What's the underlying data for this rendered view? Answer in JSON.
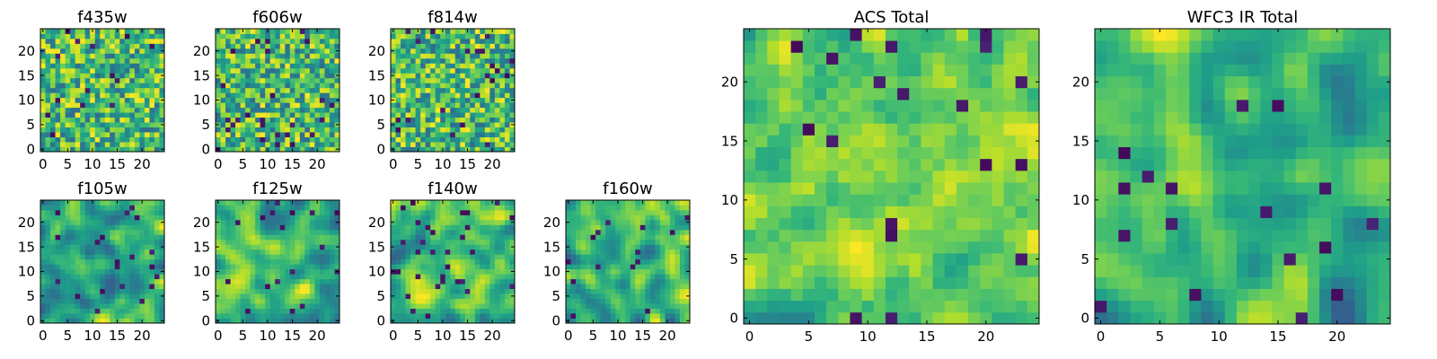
{
  "colormap": "viridis",
  "chart_data": [
    {
      "type": "heatmap",
      "title": "f435w",
      "grid": "off",
      "xlim": [
        -0.5,
        24.5
      ],
      "ylim": [
        -0.5,
        24.5
      ],
      "xticks": [
        0,
        5,
        10,
        15,
        20
      ],
      "yticks": [
        0,
        5,
        10,
        15,
        20
      ],
      "size": 25,
      "texture": "noise",
      "seed": 11,
      "values_note": ""
    },
    {
      "type": "heatmap",
      "title": "f606w",
      "grid": "off",
      "xlim": [
        -0.5,
        24.5
      ],
      "ylim": [
        -0.5,
        24.5
      ],
      "xticks": [
        0,
        5,
        10,
        15,
        20
      ],
      "yticks": [
        0,
        5,
        10,
        15,
        20
      ],
      "size": 25,
      "texture": "noise",
      "seed": 23
    },
    {
      "type": "heatmap",
      "title": "f814w",
      "grid": "off",
      "xlim": [
        -0.5,
        24.5
      ],
      "ylim": [
        -0.5,
        24.5
      ],
      "xticks": [
        0,
        5,
        10,
        15,
        20
      ],
      "yticks": [
        0,
        5,
        10,
        15,
        20
      ],
      "size": 25,
      "texture": "noise",
      "seed": 37
    },
    {
      "type": "heatmap",
      "title": "f105w",
      "grid": "off",
      "xlim": [
        -0.5,
        24.5
      ],
      "ylim": [
        -0.5,
        24.5
      ],
      "xticks": [
        0,
        5,
        10,
        15,
        20
      ],
      "yticks": [
        0,
        5,
        10,
        15,
        20
      ],
      "size": 25,
      "texture": "smooth",
      "seed": 41
    },
    {
      "type": "heatmap",
      "title": "f125w",
      "grid": "off",
      "xlim": [
        -0.5,
        24.5
      ],
      "ylim": [
        -0.5,
        24.5
      ],
      "xticks": [
        0,
        5,
        10,
        15,
        20
      ],
      "yticks": [
        0,
        5,
        10,
        15,
        20
      ],
      "size": 25,
      "texture": "smooth",
      "seed": 53
    },
    {
      "type": "heatmap",
      "title": "f140w",
      "grid": "off",
      "xlim": [
        -0.5,
        24.5
      ],
      "ylim": [
        -0.5,
        24.5
      ],
      "xticks": [
        0,
        5,
        10,
        15,
        20
      ],
      "yticks": [
        0,
        5,
        10,
        15,
        20
      ],
      "size": 25,
      "texture": "smooth",
      "seed": 67
    },
    {
      "type": "heatmap",
      "title": "f160w",
      "grid": "off",
      "xlim": [
        -0.5,
        24.5
      ],
      "ylim": [
        -0.5,
        24.5
      ],
      "xticks": [
        0,
        5,
        10,
        15,
        20
      ],
      "yticks": [
        0,
        5,
        10,
        15,
        20
      ],
      "size": 25,
      "texture": "smooth",
      "seed": 79
    },
    {
      "type": "heatmap",
      "title": "ACS Total",
      "grid": "off",
      "xlim": [
        -0.5,
        24.5
      ],
      "ylim": [
        -0.5,
        24.5
      ],
      "xticks": [
        0,
        5,
        10,
        15,
        20
      ],
      "yticks": [
        0,
        5,
        10,
        15,
        20
      ],
      "size": 25,
      "texture": "bright",
      "seed": 97
    },
    {
      "type": "heatmap",
      "title": "WFC3 IR Total",
      "grid": "off",
      "xlim": [
        -0.5,
        24.5
      ],
      "ylim": [
        -0.5,
        24.5
      ],
      "xticks": [
        0,
        5,
        10,
        15,
        20
      ],
      "yticks": [
        0,
        5,
        10,
        15,
        20
      ],
      "size": 25,
      "texture": "smooth",
      "seed": 131
    }
  ]
}
